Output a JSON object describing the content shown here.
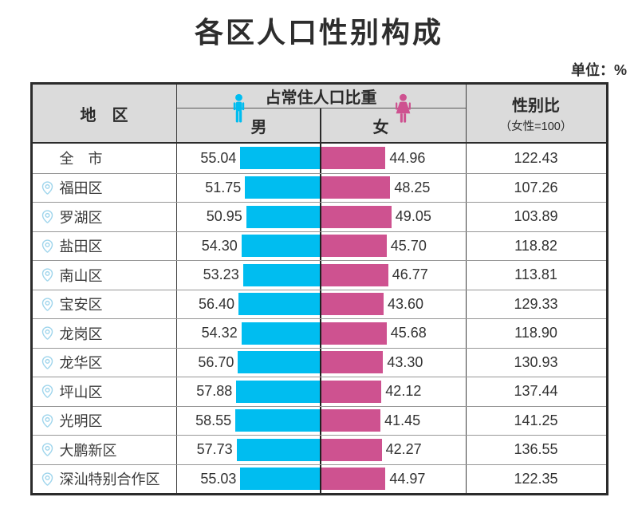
{
  "title": "各区人口性别构成",
  "unit_label": "单位：%",
  "table": {
    "region_header": "地　区",
    "share_header": "占常住人口比重",
    "male_label": "男",
    "female_label": "女",
    "ratio_header": "性别比",
    "ratio_subheader": "（女性=100）"
  },
  "colors": {
    "male": "#00BDF0",
    "female": "#CE5290",
    "pin": "#9FD5EC",
    "header_bg": "#DBDBDB",
    "border_dark": "#2B2B2B"
  },
  "icons": {
    "male": "male-person-icon",
    "female": "female-person-icon",
    "pin": "location-pin-icon"
  },
  "rows": [
    {
      "region": "全　市",
      "has_pin": false,
      "male": "55.04",
      "female": "44.96",
      "ratio": "122.43"
    },
    {
      "region": "福田区",
      "has_pin": true,
      "male": "51.75",
      "female": "48.25",
      "ratio": "107.26"
    },
    {
      "region": "罗湖区",
      "has_pin": true,
      "male": "50.95",
      "female": "49.05",
      "ratio": "103.89"
    },
    {
      "region": "盐田区",
      "has_pin": true,
      "male": "54.30",
      "female": "45.70",
      "ratio": "118.82"
    },
    {
      "region": "南山区",
      "has_pin": true,
      "male": "53.23",
      "female": "46.77",
      "ratio": "113.81"
    },
    {
      "region": "宝安区",
      "has_pin": true,
      "male": "56.40",
      "female": "43.60",
      "ratio": "129.33"
    },
    {
      "region": "龙岗区",
      "has_pin": true,
      "male": "54.32",
      "female": "45.68",
      "ratio": "118.90"
    },
    {
      "region": "龙华区",
      "has_pin": true,
      "male": "56.70",
      "female": "43.30",
      "ratio": "130.93"
    },
    {
      "region": "坪山区",
      "has_pin": true,
      "male": "57.88",
      "female": "42.12",
      "ratio": "137.44"
    },
    {
      "region": "光明区",
      "has_pin": true,
      "male": "58.55",
      "female": "41.45",
      "ratio": "141.25"
    },
    {
      "region": "大鹏新区",
      "has_pin": true,
      "male": "57.73",
      "female": "42.27",
      "ratio": "136.55"
    },
    {
      "region": "深汕特别合作区",
      "has_pin": true,
      "male": "55.03",
      "female": "44.97",
      "ratio": "122.35"
    }
  ],
  "chart_data": {
    "type": "bar",
    "orientation": "horizontal-diverging",
    "title": "各区人口性别构成",
    "unit": "%",
    "categories": [
      "全市",
      "福田区",
      "罗湖区",
      "盐田区",
      "南山区",
      "宝安区",
      "龙岗区",
      "龙华区",
      "坪山区",
      "光明区",
      "大鹏新区",
      "深汕特别合作区"
    ],
    "series": [
      {
        "name": "男",
        "color": "#00BDF0",
        "values": [
          55.04,
          51.75,
          50.95,
          54.3,
          53.23,
          56.4,
          54.32,
          56.7,
          57.88,
          58.55,
          57.73,
          55.03
        ]
      },
      {
        "name": "女",
        "color": "#CE5290",
        "values": [
          44.96,
          48.25,
          49.05,
          45.7,
          46.77,
          43.6,
          45.68,
          43.3,
          42.12,
          41.45,
          42.27,
          44.97
        ]
      },
      {
        "name": "性别比（女性=100）",
        "values": [
          122.43,
          107.26,
          103.89,
          118.82,
          113.81,
          129.33,
          118.9,
          130.93,
          137.44,
          141.25,
          136.55,
          122.35
        ]
      }
    ],
    "value_axis_range": [
      0,
      100
    ],
    "grid": false,
    "legend_position": "table-header"
  }
}
